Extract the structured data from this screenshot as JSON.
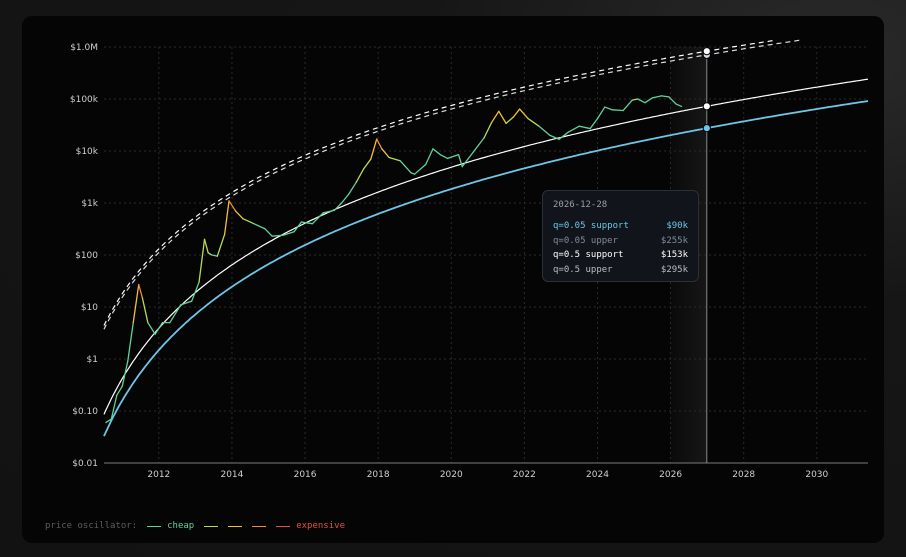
{
  "chart_data": {
    "type": "line",
    "y_scale": "log",
    "ylim": [
      0.01,
      1000000
    ],
    "xlim": [
      2010.5,
      2031.4
    ],
    "y_ticks": [
      {
        "value": 1000000,
        "label": "$1.0M"
      },
      {
        "value": 100000,
        "label": "$100k"
      },
      {
        "value": 10000,
        "label": "$10k"
      },
      {
        "value": 1000,
        "label": "$1k"
      },
      {
        "value": 100,
        "label": "$100"
      },
      {
        "value": 10,
        "label": "$10"
      },
      {
        "value": 1,
        "label": "$1"
      },
      {
        "value": 0.1,
        "label": "$0.10"
      },
      {
        "value": 0.01,
        "label": "$0.01"
      }
    ],
    "x_ticks": [
      {
        "value": 2012,
        "label": "2012"
      },
      {
        "value": 2014,
        "label": "2014"
      },
      {
        "value": 2016,
        "label": "2016"
      },
      {
        "value": 2018,
        "label": "2018"
      },
      {
        "value": 2020,
        "label": "2020"
      },
      {
        "value": 2022,
        "label": "2022"
      },
      {
        "value": 2024,
        "label": "2024"
      },
      {
        "value": 2026,
        "label": "2026"
      },
      {
        "value": 2028,
        "label": "2028"
      },
      {
        "value": 2030,
        "label": "2030"
      }
    ],
    "grid": true,
    "cursor_x": 2026.99,
    "highlight_band": [
      2026.0,
      2026.99
    ],
    "price_series": {
      "x": [
        2010.55,
        2010.7,
        2010.85,
        2011.0,
        2011.15,
        2011.3,
        2011.45,
        2011.55,
        2011.7,
        2011.9,
        2012.1,
        2012.3,
        2012.6,
        2012.9,
        2013.1,
        2013.25,
        2013.35,
        2013.45,
        2013.6,
        2013.8,
        2013.92,
        2014.1,
        2014.3,
        2014.6,
        2014.9,
        2015.1,
        2015.4,
        2015.7,
        2015.9,
        2016.2,
        2016.5,
        2016.8,
        2017.0,
        2017.2,
        2017.4,
        2017.6,
        2017.8,
        2017.96,
        2018.1,
        2018.3,
        2018.6,
        2018.9,
        2019.0,
        2019.3,
        2019.5,
        2019.7,
        2019.9,
        2020.2,
        2020.3,
        2020.6,
        2020.9,
        2021.1,
        2021.3,
        2021.5,
        2021.7,
        2021.87,
        2022.1,
        2022.4,
        2022.7,
        2022.95,
        2023.2,
        2023.5,
        2023.8,
        2024.0,
        2024.2,
        2024.4,
        2024.7,
        2024.95,
        2025.1,
        2025.3,
        2025.5,
        2025.75,
        2025.95,
        2026.15,
        2026.3
      ],
      "y": [
        0.06,
        0.07,
        0.2,
        0.3,
        0.9,
        5,
        27,
        15,
        5,
        3,
        5,
        5,
        11,
        13,
        30,
        200,
        110,
        100,
        95,
        250,
        1100,
        700,
        500,
        400,
        320,
        230,
        240,
        280,
        430,
        400,
        650,
        720,
        1000,
        1500,
        2500,
        4500,
        7000,
        17000,
        11000,
        7500,
        6500,
        3800,
        3600,
        5500,
        11000,
        8500,
        7200,
        8500,
        5000,
        9500,
        18000,
        35000,
        58000,
        34000,
        45000,
        64000,
        42000,
        30000,
        20000,
        16800,
        23000,
        30000,
        27000,
        42000,
        70000,
        62000,
        60000,
        95000,
        100000,
        85000,
        105000,
        115000,
        110000,
        80000,
        72000
      ]
    },
    "series": [
      {
        "name": "q=0.05 support",
        "color": "#6ec5e8",
        "style": "solid",
        "a": -16.48,
        "b": 5.48
      },
      {
        "name": "q=0.05 upper",
        "color": "#d8dde6",
        "style": "dashed",
        "a": -12.78,
        "b": 4.88
      },
      {
        "name": "q=0.5 support",
        "color": "#ffffff",
        "style": "solid",
        "a": -16.06,
        "b": 5.48
      },
      {
        "name": "q=0.5 upper",
        "color": "#ffffff",
        "style": "dashed",
        "a": -12.71,
        "b": 4.88
      }
    ]
  },
  "tooltip": {
    "date": "2026-12-28",
    "rows": [
      {
        "label": "q=0.05 support",
        "value": "$90k",
        "color": "#6ec5e8"
      },
      {
        "label": "q=0.05 upper",
        "value": "$255k",
        "color": "#7f8c99"
      },
      {
        "label": "q=0.5 support",
        "value": "$153k",
        "color": "#ffffff"
      },
      {
        "label": "q=0.5 upper",
        "value": "$295k",
        "color": "#b8bdc4"
      }
    ]
  },
  "legend": {
    "title": "price oscillator:",
    "low_label": "cheap",
    "high_label": "expensive",
    "colors": [
      "#5fd39a",
      "#b6dd52",
      "#f2c230",
      "#f08a35",
      "#e0513f"
    ]
  }
}
